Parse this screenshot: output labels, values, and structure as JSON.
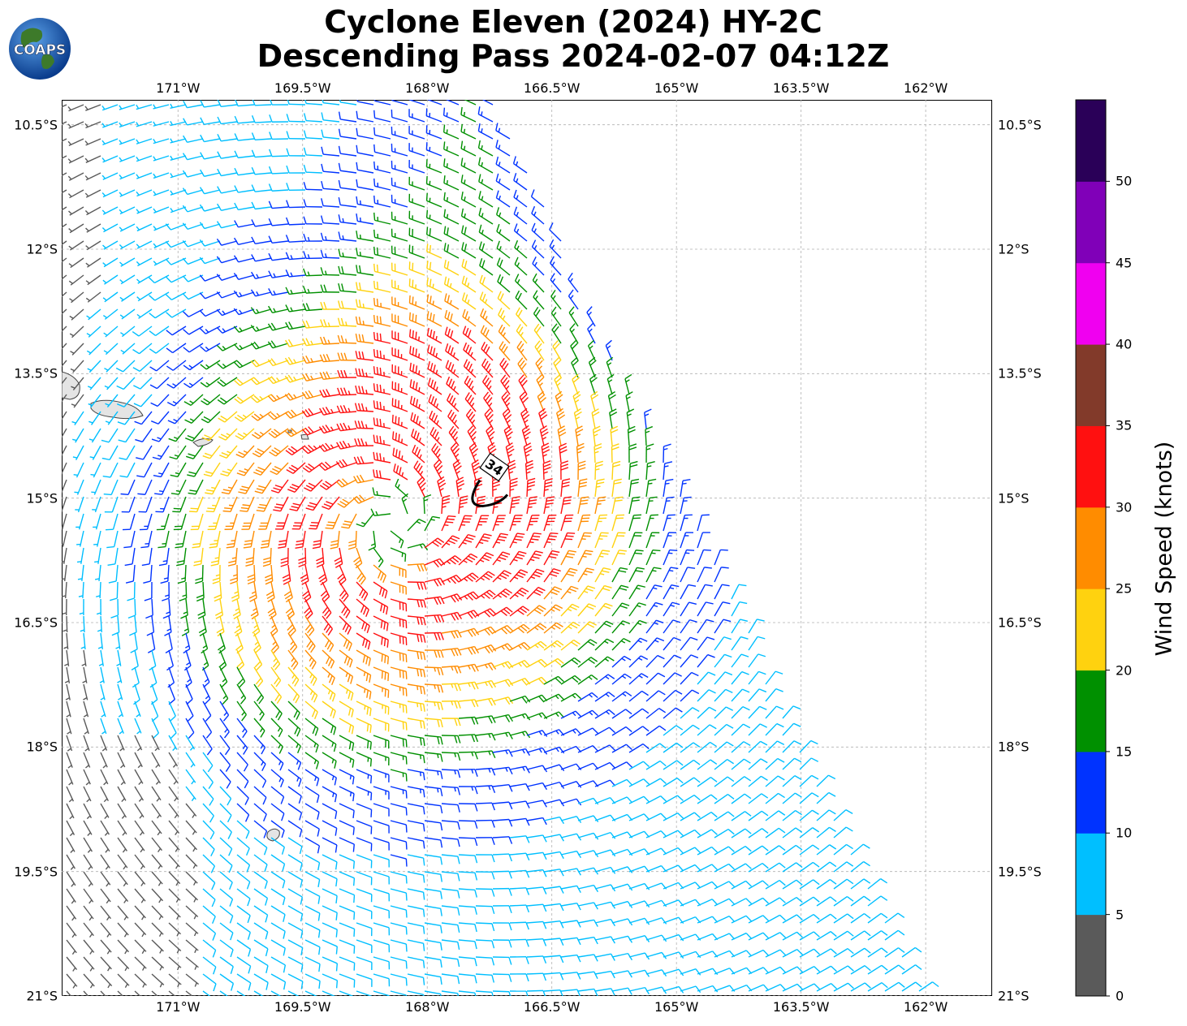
{
  "title_line1": "Cyclone Eleven (2024) HY-2C",
  "title_line2": "Descending Pass 2024-02-07 04:12Z",
  "logo": {
    "text": "COAPS"
  },
  "map": {
    "lon_ticks": [
      "171°W",
      "169.5°W",
      "168°W",
      "166.5°W",
      "165°W",
      "163.5°W",
      "162°W"
    ],
    "lat_ticks": [
      "10.5°S",
      "12°S",
      "13.5°S",
      "15°S",
      "16.5°S",
      "18°S",
      "19.5°S",
      "21°S"
    ],
    "lon_range": [
      -172.4,
      -161.2
    ],
    "lat_range": [
      -21.0,
      -10.2
    ],
    "storm_center": {
      "lon": -167.25,
      "lat": -14.9
    },
    "wind_radius_label": "34",
    "wind_barbs": {
      "circulation_center": {
        "lon": -168.4,
        "lat": -15.3
      }
    }
  },
  "colorbar": {
    "title": "Wind Speed (knots)",
    "ticks": [
      "0",
      "5",
      "10",
      "15",
      "20",
      "25",
      "30",
      "35",
      "40",
      "45",
      "50"
    ],
    "bins": [
      {
        "min": 0,
        "max": 5,
        "color": "#5a5a5a"
      },
      {
        "min": 5,
        "max": 10,
        "color": "#00bfff"
      },
      {
        "min": 10,
        "max": 15,
        "color": "#0033ff"
      },
      {
        "min": 15,
        "max": 20,
        "color": "#009000"
      },
      {
        "min": 20,
        "max": 25,
        "color": "#ffd20f"
      },
      {
        "min": 25,
        "max": 30,
        "color": "#ff8c00"
      },
      {
        "min": 30,
        "max": 35,
        "color": "#ff1010"
      },
      {
        "min": 35,
        "max": 40,
        "color": "#823a2a"
      },
      {
        "min": 40,
        "max": 45,
        "color": "#f000f0"
      },
      {
        "min": 45,
        "max": 50,
        "color": "#8000b8"
      },
      {
        "min": 50,
        "max": 55,
        "color": "#2a0058"
      }
    ]
  }
}
